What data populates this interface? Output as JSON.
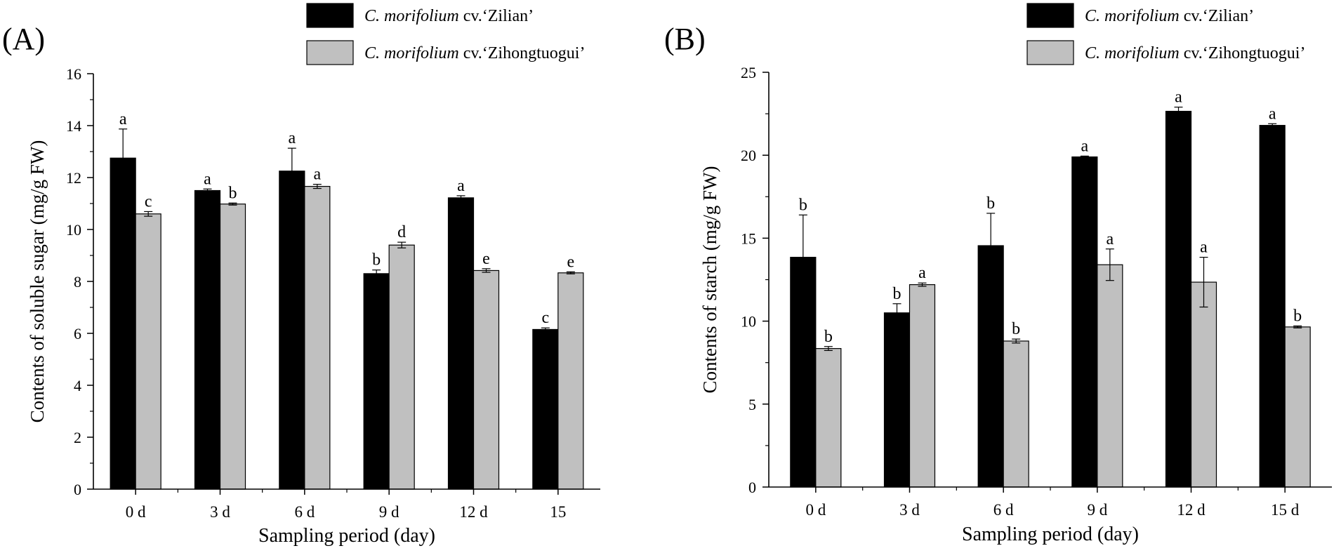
{
  "colors": {
    "zilian": "#000000",
    "zihong": "#c0c0c0",
    "axis": "#000000"
  },
  "chart_data": [
    {
      "type": "bar",
      "panel_label": "(A)",
      "title": "",
      "xlabel": "Sampling period (day)",
      "ylabel": "Contents of soluble sugar  (mg/g FW)",
      "ylim": [
        0,
        16
      ],
      "yticks": [
        0,
        2,
        4,
        6,
        8,
        10,
        12,
        14,
        16
      ],
      "categories": [
        "0 d",
        "3 d",
        "6 d",
        "9 d",
        "12 d",
        "15"
      ],
      "series": [
        {
          "name": "C. morifolium cv.‘Zilian’",
          "legend_italic": "C. morifolium",
          "legend_rest": " cv.‘Zilian’",
          "values": [
            12.75,
            11.5,
            12.25,
            8.3,
            11.22,
            6.15
          ],
          "errors": [
            1.12,
            0.06,
            0.88,
            0.14,
            0.08,
            0.06
          ],
          "labels": [
            "a",
            "a",
            "a",
            "b",
            "a",
            "c"
          ]
        },
        {
          "name": "C. morifolium cv.‘Zihongtuogui’",
          "legend_italic": "C. morifolium",
          "legend_rest": " cv.‘Zihongtuogui’",
          "values": [
            10.6,
            10.98,
            11.66,
            9.4,
            8.42,
            8.33
          ],
          "errors": [
            0.09,
            0.04,
            0.08,
            0.11,
            0.07,
            0.04
          ],
          "labels": [
            "c",
            "b",
            "a",
            "d",
            "e",
            "e"
          ]
        }
      ]
    },
    {
      "type": "bar",
      "panel_label": "(B)",
      "title": "",
      "xlabel": "Sampling period (day)",
      "ylabel": "Contents of starch  (mg/g FW)",
      "ylim": [
        0,
        25
      ],
      "yticks": [
        0,
        5,
        10,
        15,
        20,
        25
      ],
      "categories": [
        "0 d",
        "3 d",
        "6 d",
        "9 d",
        "12 d",
        "15 d"
      ],
      "series": [
        {
          "name": "C. morifolium cv.‘Zilian’",
          "legend_italic": "C. morifolium",
          "legend_rest": " cv.‘Zilian’",
          "values": [
            13.85,
            10.5,
            14.55,
            19.9,
            22.65,
            21.8
          ],
          "errors": [
            2.55,
            0.55,
            1.95,
            0.05,
            0.25,
            0.1
          ],
          "labels": [
            "b",
            "b",
            "b",
            "a",
            "a",
            "a"
          ]
        },
        {
          "name": "C. morifolium cv.‘Zihongtuogui’",
          "legend_italic": "C. morifolium",
          "legend_rest": " cv.‘Zihongtuogui’",
          "values": [
            8.35,
            12.2,
            8.8,
            13.4,
            12.35,
            9.65
          ],
          "errors": [
            0.12,
            0.1,
            0.12,
            0.95,
            1.5,
            0.06
          ],
          "labels": [
            "b",
            "a",
            "b",
            "a",
            "a",
            "b"
          ]
        }
      ]
    }
  ]
}
